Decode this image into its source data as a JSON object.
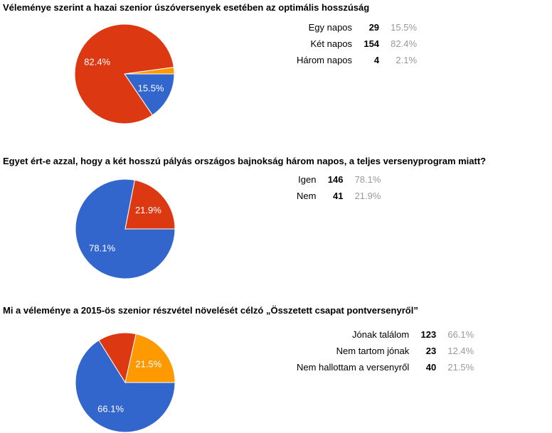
{
  "page": {
    "background": "#ffffff"
  },
  "palette": {
    "blue": "#3366cc",
    "red": "#dc3912",
    "orange": "#ff9900",
    "title_color": "#000000",
    "count_color": "#000000",
    "percent_color": "#999999",
    "slice_label_color": "#ffffff",
    "slice_border_color": "#ffffff"
  },
  "chart_data": [
    {
      "type": "pie",
      "title": "Véleménye szerint a hazai szenior úszóversenyek esetében az optimális hosszúság",
      "categories": [
        "Egy napos",
        "Két napos",
        "Három napos"
      ],
      "values": [
        29,
        154,
        4
      ],
      "percent_labels": [
        "15.5%",
        "82.4%",
        "2.1%"
      ],
      "colors": [
        "#3366cc",
        "#dc3912",
        "#ff9900"
      ],
      "start_angle_deg": 0,
      "direction": "clockwise",
      "label_min_percent": 14,
      "legend_position": "none"
    },
    {
      "type": "pie",
      "title": "Egyet ért-e azzal, hogy a két hosszú pályás országos bajnokság három napos, a teljes versenyprogram miatt?",
      "categories": [
        "Igen",
        "Nem"
      ],
      "values": [
        146,
        41
      ],
      "percent_labels": [
        "78.1%",
        "21.9%"
      ],
      "colors": [
        "#3366cc",
        "#dc3912"
      ],
      "start_angle_deg": 0,
      "direction": "clockwise",
      "label_min_percent": 14,
      "legend_position": "none"
    },
    {
      "type": "pie",
      "title": "Mi a véleménye a 2015-ös szenior részvétel növelését célzó „Összetett csapat pontversenyről”",
      "categories": [
        "Jónak találom",
        "Nem tartom jónak",
        "Nem hallottam a versenyről"
      ],
      "values": [
        123,
        23,
        40
      ],
      "percent_labels": [
        "66.1%",
        "12.4%",
        "21.5%"
      ],
      "colors": [
        "#3366cc",
        "#dc3912",
        "#ff9900"
      ],
      "start_angle_deg": 0,
      "direction": "clockwise",
      "label_min_percent": 14,
      "legend_position": "none"
    }
  ]
}
